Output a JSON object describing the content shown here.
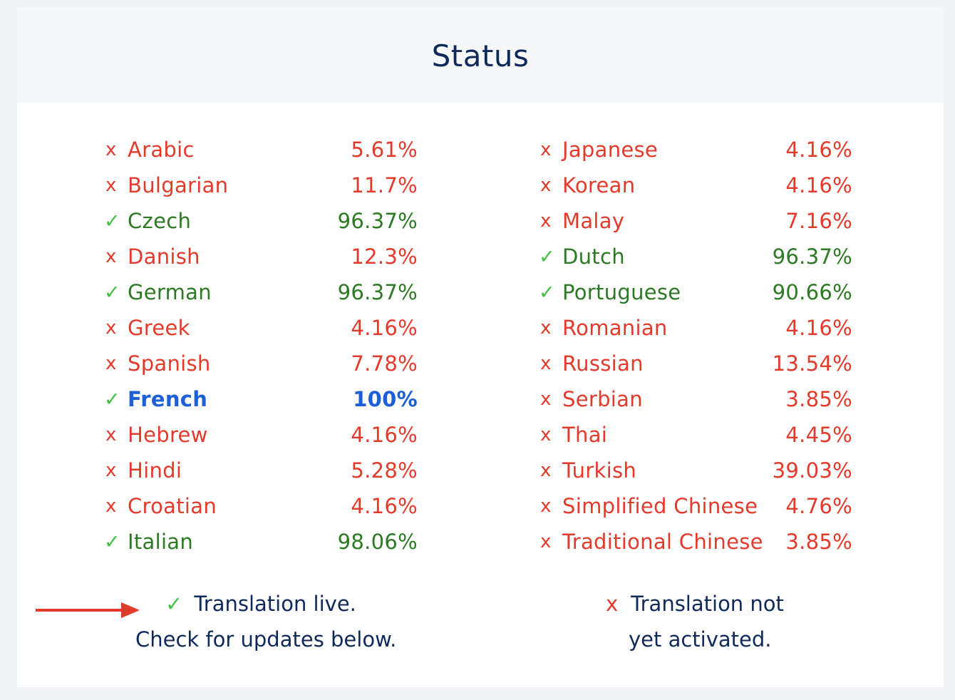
{
  "header": {
    "title": "Status"
  },
  "languages": {
    "left": [
      {
        "name": "Arabic",
        "percent": "5.61%",
        "status": "no"
      },
      {
        "name": "Bulgarian",
        "percent": "11.7%",
        "status": "no"
      },
      {
        "name": "Czech",
        "percent": "96.37%",
        "status": "ok"
      },
      {
        "name": "Danish",
        "percent": "12.3%",
        "status": "no"
      },
      {
        "name": "German",
        "percent": "96.37%",
        "status": "ok"
      },
      {
        "name": "Greek",
        "percent": "4.16%",
        "status": "no"
      },
      {
        "name": "Spanish",
        "percent": "7.78%",
        "status": "no"
      },
      {
        "name": "French",
        "percent": "100%",
        "status": "full"
      },
      {
        "name": "Hebrew",
        "percent": "4.16%",
        "status": "no"
      },
      {
        "name": "Hindi",
        "percent": "5.28%",
        "status": "no"
      },
      {
        "name": "Croatian",
        "percent": "4.16%",
        "status": "no"
      },
      {
        "name": "Italian",
        "percent": "98.06%",
        "status": "ok"
      }
    ],
    "right": [
      {
        "name": "Japanese",
        "percent": "4.16%",
        "status": "no"
      },
      {
        "name": "Korean",
        "percent": "4.16%",
        "status": "no"
      },
      {
        "name": "Malay",
        "percent": "7.16%",
        "status": "no"
      },
      {
        "name": "Dutch",
        "percent": "96.37%",
        "status": "ok"
      },
      {
        "name": "Portuguese",
        "percent": "90.66%",
        "status": "ok"
      },
      {
        "name": "Romanian",
        "percent": "4.16%",
        "status": "no"
      },
      {
        "name": "Russian",
        "percent": "13.54%",
        "status": "no"
      },
      {
        "name": "Serbian",
        "percent": "3.85%",
        "status": "no"
      },
      {
        "name": "Thai",
        "percent": "4.45%",
        "status": "no"
      },
      {
        "name": "Turkish",
        "percent": "39.03%",
        "status": "no"
      },
      {
        "name": "Simplified Chinese",
        "percent": "4.76%",
        "status": "no"
      },
      {
        "name": "Traditional Chinese",
        "percent": "3.85%",
        "status": "no"
      }
    ]
  },
  "symbols": {
    "ok": "✓",
    "no": "x"
  },
  "legend": {
    "live_line1": "Translation live.",
    "live_line2": "Check for updates below.",
    "inactive_line1": "Translation not",
    "inactive_line2": "yet activated."
  },
  "colors": {
    "title": "#0f2a5a",
    "check": "#43c043",
    "live_text": "#2d7a24",
    "inactive": "#e43a2c",
    "complete": "#1c5fd6",
    "arrow": "#e43a2c"
  },
  "icons": {
    "arrow": "right-arrow-icon",
    "check": "check-icon",
    "cross": "cross-icon"
  }
}
